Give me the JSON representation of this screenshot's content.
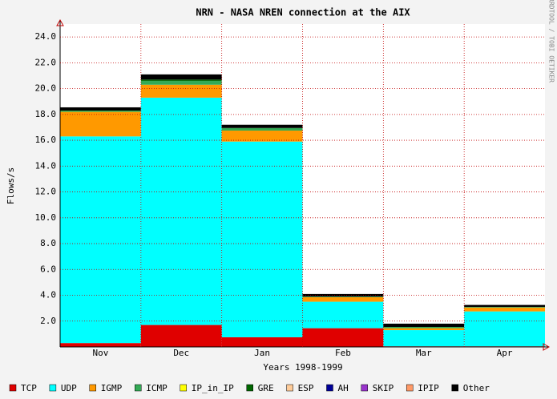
{
  "chart_data": {
    "type": "stacked-area",
    "title": "NRN - NASA NREN connection at the AIX",
    "x_label": "Years 1998-1999",
    "y_label": "Flows/s",
    "side_note": "RRDTOOL / TOBI OETIKER",
    "categories": [
      "Nov",
      "Dec",
      "Jan",
      "Feb",
      "Mar",
      "Apr"
    ],
    "ylim": [
      0,
      25
    ],
    "yticks": [
      {
        "value": 2,
        "label": "2.0"
      },
      {
        "value": 4,
        "label": "4.0"
      },
      {
        "value": 6,
        "label": "6.0"
      },
      {
        "value": 8,
        "label": "8.0"
      },
      {
        "value": 10,
        "label": "10.0"
      },
      {
        "value": 12,
        "label": "12.0"
      },
      {
        "value": 14,
        "label": "14.0"
      },
      {
        "value": 16,
        "label": "16.0"
      },
      {
        "value": 18,
        "label": "18.0"
      },
      {
        "value": 20,
        "label": "20.0"
      },
      {
        "value": 22,
        "label": "22.0"
      },
      {
        "value": 24,
        "label": "24.0"
      }
    ],
    "grid": true,
    "series": [
      {
        "name": "TCP",
        "color": "#e00000",
        "values": [
          0.3,
          1.7,
          0.75,
          1.45,
          0.05,
          0.05
        ]
      },
      {
        "name": "UDP",
        "color": "#00ffff",
        "values": [
          16.0,
          17.6,
          15.15,
          2.05,
          1.25,
          2.7
        ]
      },
      {
        "name": "IGMP",
        "color": "#ff9900",
        "values": [
          1.9,
          1.0,
          0.85,
          0.35,
          0.15,
          0.3
        ]
      },
      {
        "name": "ICMP",
        "color": "#33aa55",
        "values": [
          0.1,
          0.3,
          0.2,
          0.05,
          0.1,
          0.05
        ]
      },
      {
        "name": "IP_in_IP",
        "color": "#ffff00",
        "values": [
          0,
          0,
          0,
          0,
          0,
          0
        ]
      },
      {
        "name": "GRE",
        "color": "#006600",
        "values": [
          0,
          0.1,
          0,
          0,
          0,
          0
        ]
      },
      {
        "name": "ESP",
        "color": "#ffcc99",
        "values": [
          0,
          0,
          0,
          0,
          0,
          0
        ]
      },
      {
        "name": "AH",
        "color": "#000099",
        "values": [
          0,
          0,
          0,
          0,
          0,
          0
        ]
      },
      {
        "name": "SKIP",
        "color": "#9933cc",
        "values": [
          0,
          0,
          0,
          0,
          0,
          0
        ]
      },
      {
        "name": "IPIP",
        "color": "#ff9966",
        "values": [
          0,
          0,
          0,
          0,
          0,
          0
        ]
      },
      {
        "name": "Other",
        "color": "#000000",
        "values": [
          0.25,
          0.4,
          0.25,
          0.2,
          0.25,
          0.15
        ]
      }
    ]
  }
}
